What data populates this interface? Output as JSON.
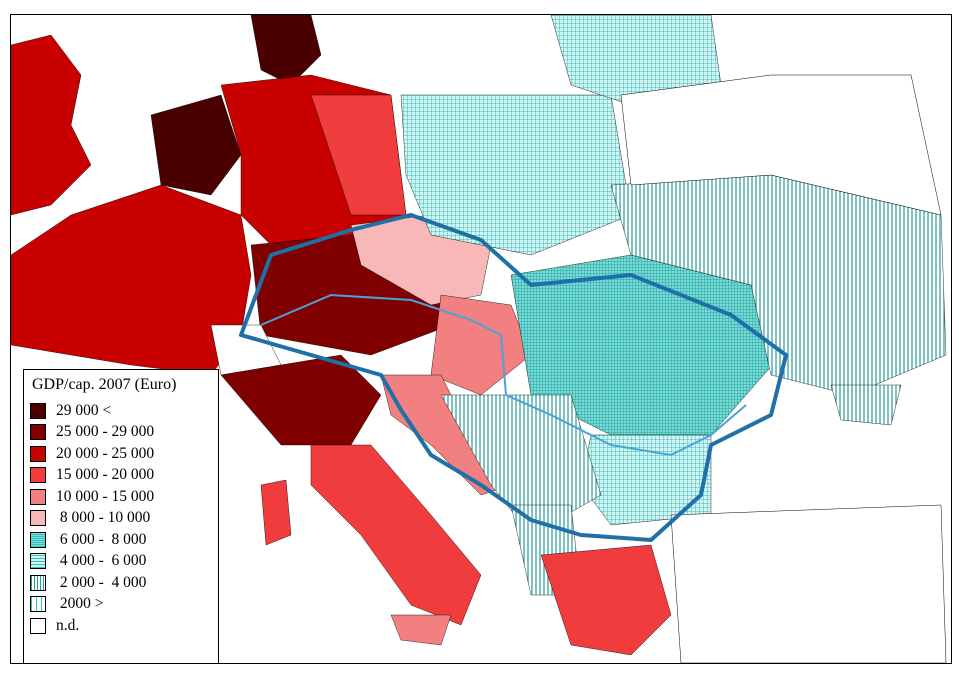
{
  "legend": {
    "title": "GDP/cap. 2007 (Euro)",
    "classes": [
      {
        "label": "29 000 <",
        "color": "#4a0000",
        "pattern": "solid"
      },
      {
        "label": "25 000 - 29 000",
        "color": "#800000",
        "pattern": "solid"
      },
      {
        "label": "20 000 - 25 000",
        "color": "#c80000",
        "pattern": "solid"
      },
      {
        "label": "15 000 - 20 000",
        "color": "#f03c3c",
        "pattern": "solid"
      },
      {
        "label": "10 000 - 15 000",
        "color": "#f28080",
        "pattern": "solid"
      },
      {
        "label": " 8 000 - 10 000",
        "color": "#f8b8b8",
        "pattern": "solid"
      },
      {
        "label": " 6 000 -  8 000",
        "color": "#2ec4c0",
        "pattern": "dense-grid"
      },
      {
        "label": " 4 000 -  6 000",
        "color": "#2ec4c0",
        "pattern": "grid"
      },
      {
        "label": " 2 000 -  4 000",
        "color": "#2a9a9a",
        "pattern": "vertical-lines"
      },
      {
        "label": " 2000 >",
        "color": "#2ec4c0",
        "pattern": "sparse-vertical"
      },
      {
        "label": "n.d.",
        "color": "#ffffff",
        "pattern": "solid"
      }
    ]
  },
  "colors": {
    "boundary_highlight": "#1f6fa8",
    "inner_boundary": "#4aa3d8",
    "sea": "#ffffff",
    "country_border": "#8cc63f",
    "region_border": "#000000"
  }
}
